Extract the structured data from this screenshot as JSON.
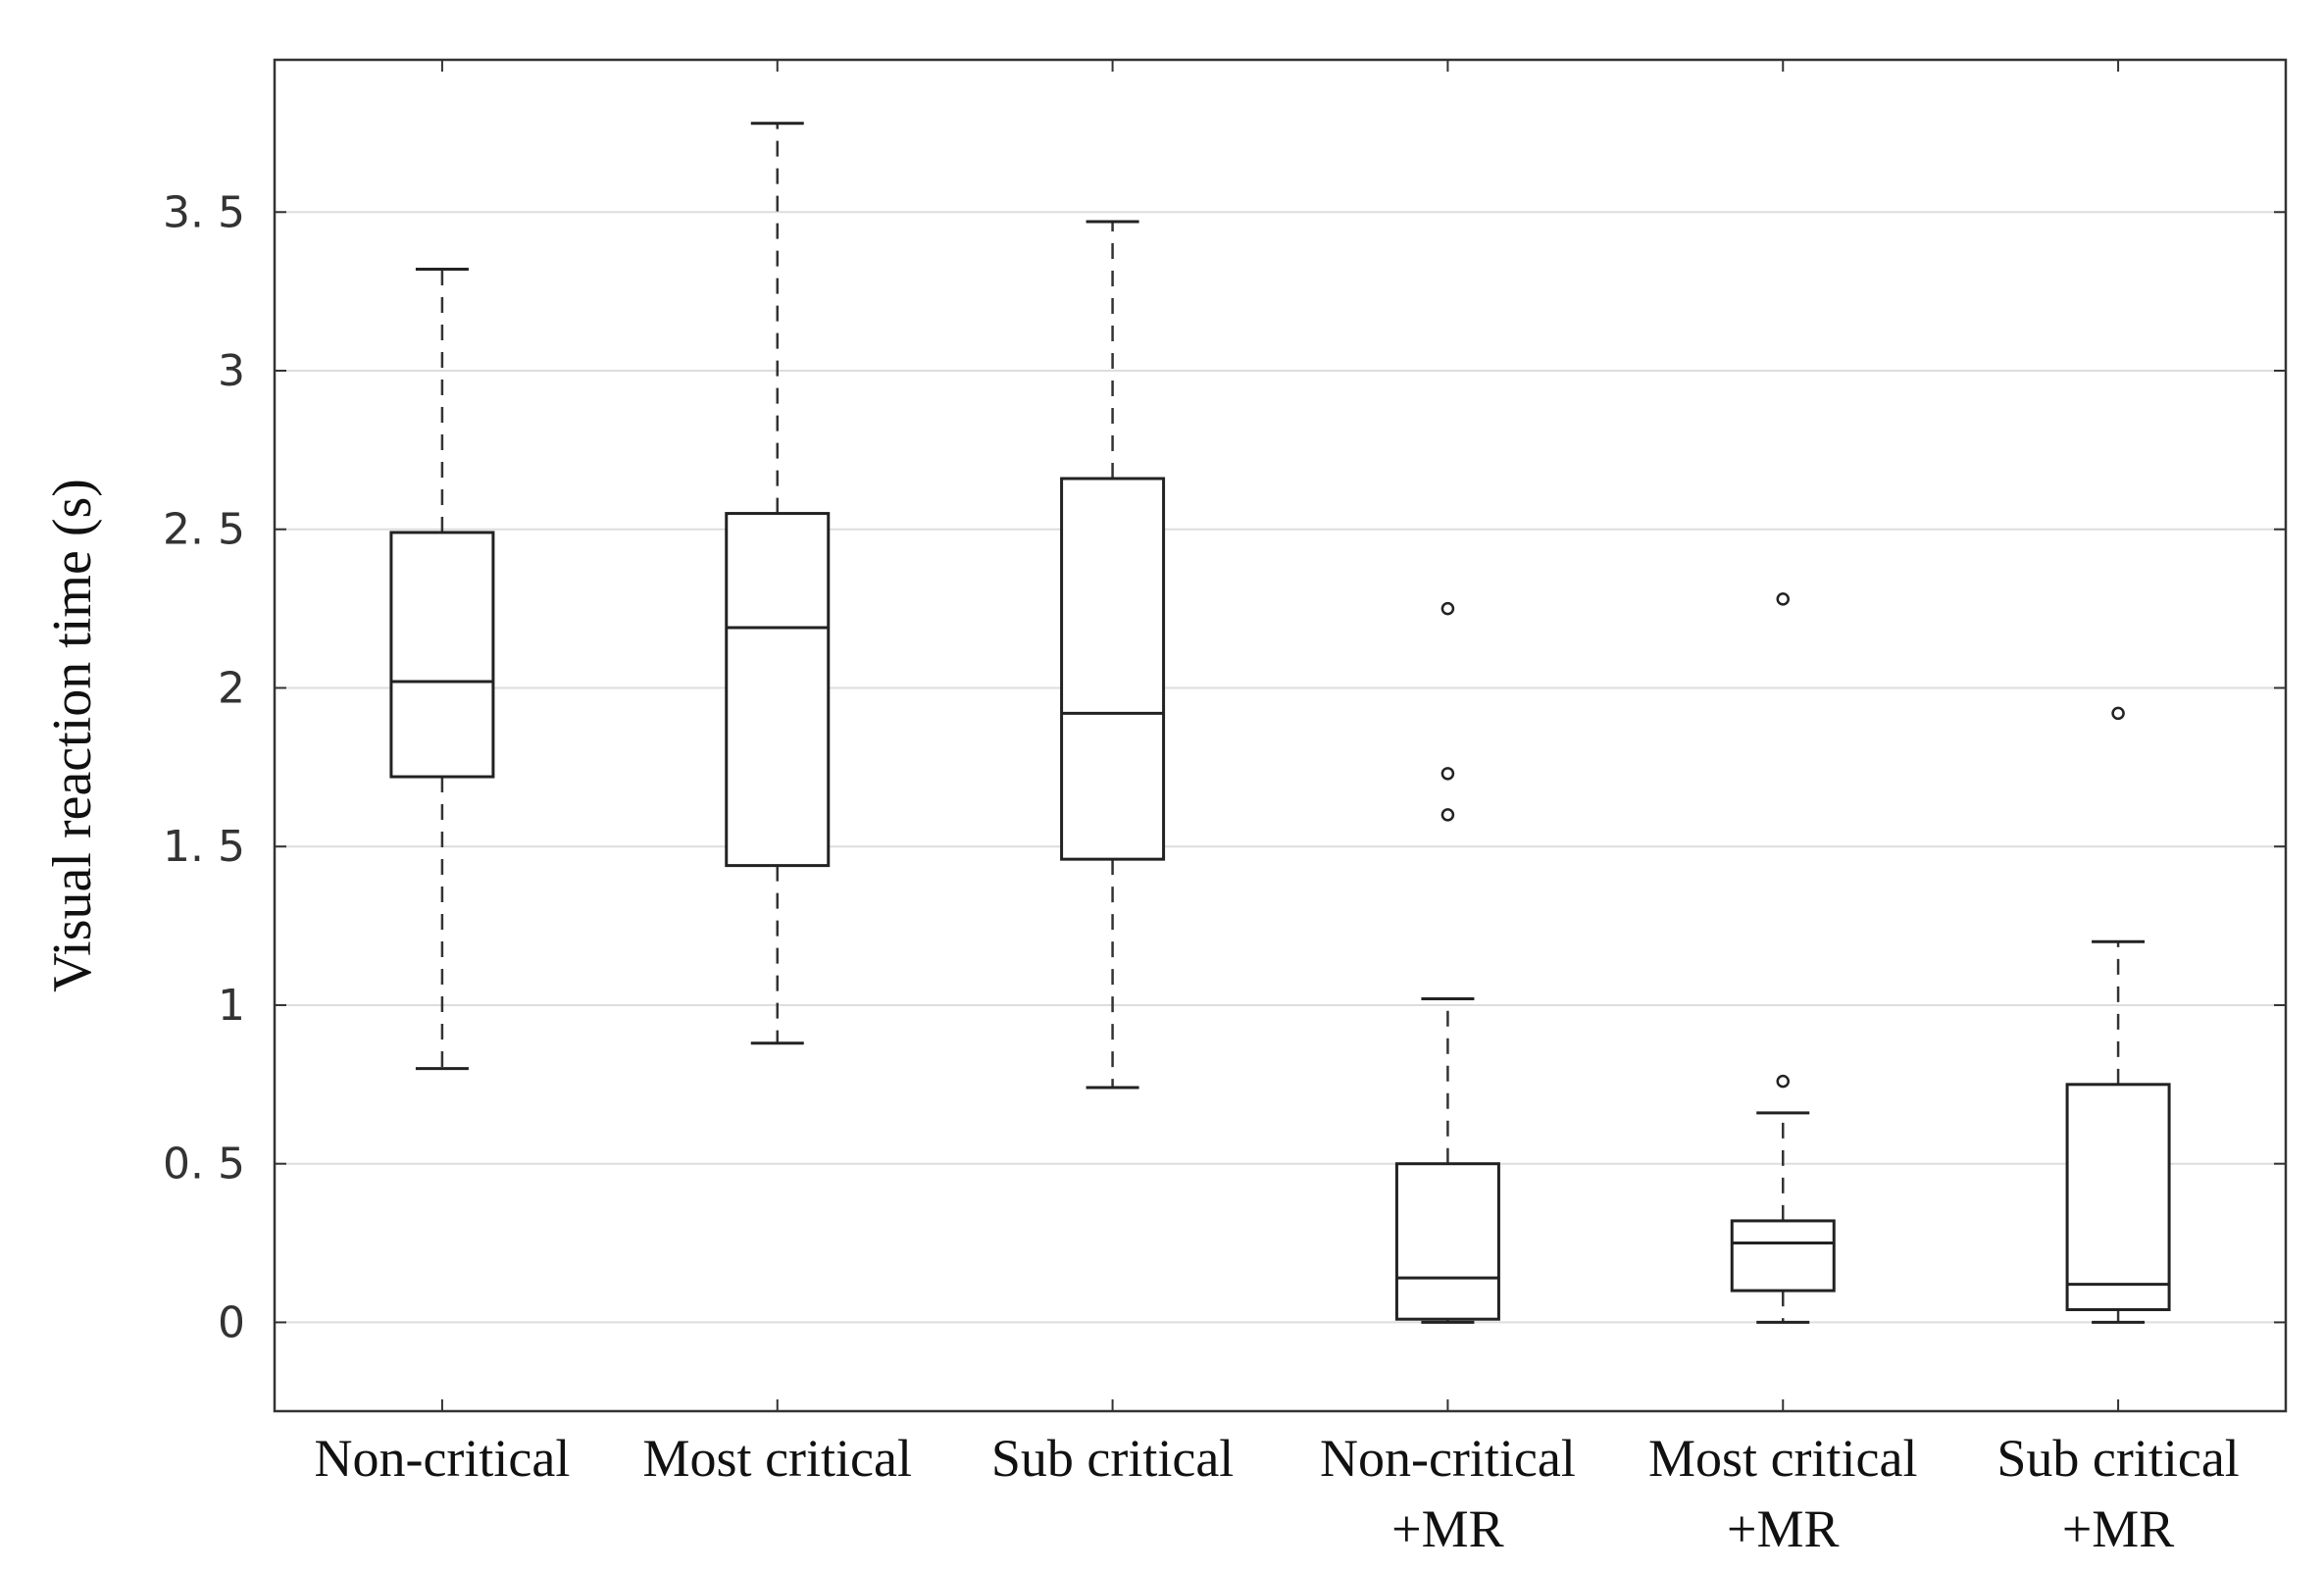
{
  "chart_data": {
    "type": "boxplot",
    "title": "",
    "xlabel": "",
    "ylabel": "Visual reaction time (s)",
    "ylim": [
      -0.28,
      3.98
    ],
    "yticks": [
      0,
      0.5,
      1,
      1.5,
      2,
      2.5,
      3,
      3.5
    ],
    "ytick_labels": [
      "0",
      "0. 5",
      "1",
      "1. 5",
      "2",
      "2. 5",
      "3",
      "3. 5"
    ],
    "grid": "horizontal",
    "categories": [
      {
        "lines": [
          "Non-critical"
        ]
      },
      {
        "lines": [
          "Most critical"
        ]
      },
      {
        "lines": [
          "Sub critical"
        ]
      },
      {
        "lines": [
          "Non-critical",
          "+MR"
        ]
      },
      {
        "lines": [
          "Most critical",
          "+MR"
        ]
      },
      {
        "lines": [
          "Sub critical",
          "+MR"
        ]
      }
    ],
    "boxes": [
      {
        "whisker_low": 0.8,
        "q1": 1.72,
        "median": 2.02,
        "q3": 2.49,
        "whisker_high": 3.32,
        "outliers": []
      },
      {
        "whisker_low": 0.88,
        "q1": 1.44,
        "median": 2.19,
        "q3": 2.55,
        "whisker_high": 3.78,
        "outliers": []
      },
      {
        "whisker_low": 0.74,
        "q1": 1.46,
        "median": 1.92,
        "q3": 2.66,
        "whisker_high": 3.47,
        "outliers": []
      },
      {
        "whisker_low": 0.0,
        "q1": 0.01,
        "median": 0.14,
        "q3": 0.5,
        "whisker_high": 1.02,
        "outliers": [
          1.6,
          1.73,
          2.25
        ]
      },
      {
        "whisker_low": 0.0,
        "q1": 0.1,
        "median": 0.25,
        "q3": 0.32,
        "whisker_high": 0.66,
        "outliers": [
          0.76,
          2.28
        ]
      },
      {
        "whisker_low": 0.0,
        "q1": 0.04,
        "median": 0.12,
        "q3": 0.75,
        "whisker_high": 1.2,
        "outliers": [
          1.92
        ]
      }
    ],
    "colors": {
      "box": "#222222",
      "grid": "#dddddd",
      "axis": "#333333",
      "whisker": "#333333"
    }
  }
}
